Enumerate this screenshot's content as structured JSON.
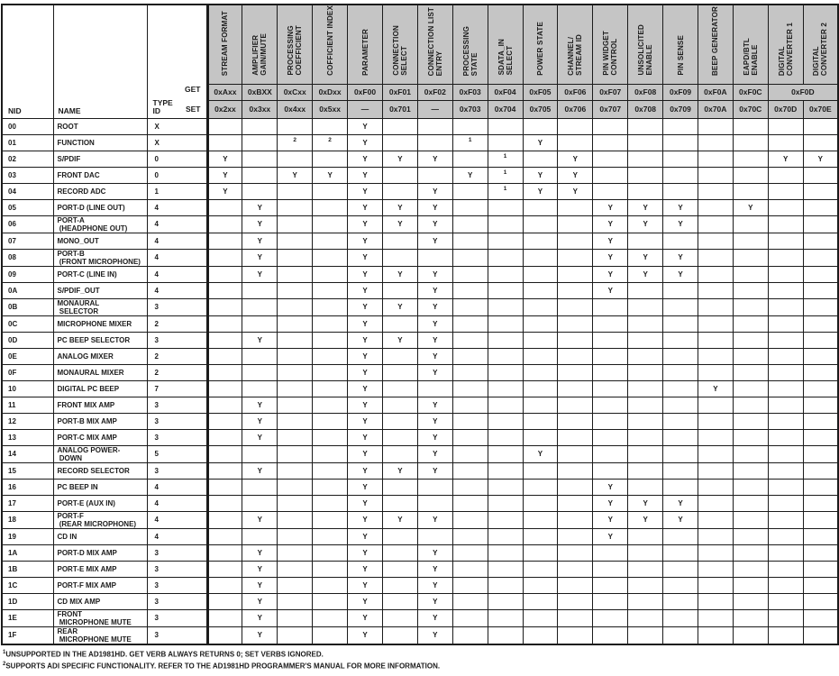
{
  "table": {
    "corner": {
      "nid": "NID",
      "name": "NAME",
      "type_id": "TYPE\nID",
      "get": "GET",
      "set": "SET"
    },
    "columns": [
      {
        "label": "STREAM FORMAT",
        "get": "0xAxx",
        "set": "0x2xx"
      },
      {
        "label": "AMPLIFIER\nGAIN/MUTE",
        "get": "0xBXX",
        "set": "0x3xx"
      },
      {
        "label": "PROCESSING\nCOEFFICIENT",
        "get": "0xCxx",
        "set": "0x4xx"
      },
      {
        "label": "COFFICIENT INDEX",
        "get": "0xDxx",
        "set": "0x5xx"
      },
      {
        "label": "PARAMETER",
        "get": "0xF00",
        "set": "—"
      },
      {
        "label": "CONNECTION\nSELECT",
        "get": "0xF01",
        "set": "0x701"
      },
      {
        "label": "CONNECTION LIST\nENTRY",
        "get": "0xF02",
        "set": "—"
      },
      {
        "label": "PROCESSING\nSTATE",
        "get": "0xF03",
        "set": "0x703"
      },
      {
        "label": "SDATA_IN\nSELECT",
        "get": "0xF04",
        "set": "0x704"
      },
      {
        "label": "POWER STATE",
        "get": "0xF05",
        "set": "0x705"
      },
      {
        "label": "CHANNEL/\nSTREAM ID",
        "get": "0xF06",
        "set": "0x706"
      },
      {
        "label": "PIN WIDGET\nCONTROL",
        "get": "0xF07",
        "set": "0x707"
      },
      {
        "label": "UNSOLICITED\nENABLE",
        "get": "0xF08",
        "set": "0x708"
      },
      {
        "label": "PIN SENSE",
        "get": "0xF09",
        "set": "0x709"
      },
      {
        "label": "BEEP GENERATOR",
        "get": "0xF0A",
        "set": "0x70A"
      },
      {
        "label": "EAPD/BTL\nENABLE",
        "get": "0xF0C",
        "set": "0x70C"
      },
      {
        "label": "DIGITAL\nCONVERTER 1",
        "get": "0xF0D",
        "get_colspan": 2,
        "set": "0x70D"
      },
      {
        "label": "DIGITAL\nCONVERTER 2",
        "get": null,
        "set": "0x70E"
      }
    ],
    "rows": [
      {
        "nid": "00",
        "name": "ROOT",
        "type": "X",
        "cells": [
          "",
          "",
          "",
          "",
          "Y",
          "",
          "",
          "",
          "",
          "",
          "",
          "",
          "",
          "",
          "",
          "",
          "",
          ""
        ]
      },
      {
        "nid": "01",
        "name": "FUNCTION",
        "type": "X",
        "cells": [
          "",
          "",
          "2",
          "2",
          "Y",
          "",
          "",
          "1",
          "",
          "Y",
          "",
          "",
          "",
          "",
          "",
          "",
          "",
          ""
        ]
      },
      {
        "nid": "02",
        "name": "S/PDIF",
        "type": "0",
        "cells": [
          "Y",
          "",
          "",
          "",
          "Y",
          "Y",
          "Y",
          "",
          "1",
          "",
          "Y",
          "",
          "",
          "",
          "",
          "",
          "Y",
          "Y"
        ]
      },
      {
        "nid": "03",
        "name": "FRONT DAC",
        "type": "0",
        "cells": [
          "Y",
          "",
          "Y",
          "Y",
          "Y",
          "",
          "",
          "Y",
          "1",
          "Y",
          "Y",
          "",
          "",
          "",
          "",
          "",
          "",
          ""
        ]
      },
      {
        "nid": "04",
        "name": "RECORD ADC",
        "type": "1",
        "cells": [
          "Y",
          "",
          "",
          "",
          "Y",
          "",
          "Y",
          "",
          "1",
          "Y",
          "Y",
          "",
          "",
          "",
          "",
          "",
          "",
          ""
        ]
      },
      {
        "nid": "05",
        "name": "PORT-D (LINE OUT)",
        "type": "4",
        "cells": [
          "",
          "Y",
          "",
          "",
          "Y",
          "Y",
          "Y",
          "",
          "",
          "",
          "",
          "Y",
          "Y",
          "Y",
          "",
          "Y",
          "",
          ""
        ]
      },
      {
        "nid": "06",
        "name": "PORT-A\n (HEADPHONE OUT)",
        "type": "4",
        "cells": [
          "",
          "Y",
          "",
          "",
          "Y",
          "Y",
          "Y",
          "",
          "",
          "",
          "",
          "Y",
          "Y",
          "Y",
          "",
          "",
          "",
          ""
        ]
      },
      {
        "nid": "07",
        "name": "MONO_OUT",
        "type": "4",
        "cells": [
          "",
          "Y",
          "",
          "",
          "Y",
          "",
          "Y",
          "",
          "",
          "",
          "",
          "Y",
          "",
          "",
          "",
          "",
          "",
          ""
        ]
      },
      {
        "nid": "08",
        "name": "PORT-B\n (FRONT MICROPHONE)",
        "type": "4",
        "cells": [
          "",
          "Y",
          "",
          "",
          "Y",
          "",
          "",
          "",
          "",
          "",
          "",
          "Y",
          "Y",
          "Y",
          "",
          "",
          "",
          ""
        ]
      },
      {
        "nid": "09",
        "name": "PORT-C (LINE IN)",
        "type": "4",
        "cells": [
          "",
          "Y",
          "",
          "",
          "Y",
          "Y",
          "Y",
          "",
          "",
          "",
          "",
          "Y",
          "Y",
          "Y",
          "",
          "",
          "",
          ""
        ]
      },
      {
        "nid": "0A",
        "name": "S/PDIF_OUT",
        "type": "4",
        "cells": [
          "",
          "",
          "",
          "",
          "Y",
          "",
          "Y",
          "",
          "",
          "",
          "",
          "Y",
          "",
          "",
          "",
          "",
          "",
          ""
        ]
      },
      {
        "nid": "0B",
        "name": "MONAURAL\n SELECTOR",
        "type": "3",
        "cells": [
          "",
          "",
          "",
          "",
          "Y",
          "Y",
          "Y",
          "",
          "",
          "",
          "",
          "",
          "",
          "",
          "",
          "",
          "",
          ""
        ]
      },
      {
        "nid": "0C",
        "name": "MICROPHONE MIXER",
        "type": "2",
        "cells": [
          "",
          "",
          "",
          "",
          "Y",
          "",
          "Y",
          "",
          "",
          "",
          "",
          "",
          "",
          "",
          "",
          "",
          "",
          ""
        ]
      },
      {
        "nid": "0D",
        "name": "PC BEEP SELECTOR",
        "type": "3",
        "cells": [
          "",
          "Y",
          "",
          "",
          "Y",
          "Y",
          "Y",
          "",
          "",
          "",
          "",
          "",
          "",
          "",
          "",
          "",
          "",
          ""
        ]
      },
      {
        "nid": "0E",
        "name": "ANALOG MIXER",
        "type": "2",
        "cells": [
          "",
          "",
          "",
          "",
          "Y",
          "",
          "Y",
          "",
          "",
          "",
          "",
          "",
          "",
          "",
          "",
          "",
          "",
          ""
        ]
      },
      {
        "nid": "0F",
        "name": "MONAURAL MIXER",
        "type": "2",
        "cells": [
          "",
          "",
          "",
          "",
          "Y",
          "",
          "Y",
          "",
          "",
          "",
          "",
          "",
          "",
          "",
          "",
          "",
          "",
          ""
        ]
      },
      {
        "nid": "10",
        "name": "DIGITAL PC BEEP",
        "type": "7",
        "cells": [
          "",
          "",
          "",
          "",
          "Y",
          "",
          "",
          "",
          "",
          "",
          "",
          "",
          "",
          "",
          "Y",
          "",
          "",
          ""
        ]
      },
      {
        "nid": "11",
        "name": "FRONT MIX AMP",
        "type": "3",
        "cells": [
          "",
          "Y",
          "",
          "",
          "Y",
          "",
          "Y",
          "",
          "",
          "",
          "",
          "",
          "",
          "",
          "",
          "",
          "",
          ""
        ]
      },
      {
        "nid": "12",
        "name": "PORT-B MIX AMP",
        "type": "3",
        "cells": [
          "",
          "Y",
          "",
          "",
          "Y",
          "",
          "Y",
          "",
          "",
          "",
          "",
          "",
          "",
          "",
          "",
          "",
          "",
          ""
        ]
      },
      {
        "nid": "13",
        "name": "PORT-C MIX AMP",
        "type": "3",
        "cells": [
          "",
          "Y",
          "",
          "",
          "Y",
          "",
          "Y",
          "",
          "",
          "",
          "",
          "",
          "",
          "",
          "",
          "",
          "",
          ""
        ]
      },
      {
        "nid": "14",
        "name": "ANALOG POWER-\n DOWN",
        "type": "5",
        "cells": [
          "",
          "",
          "",
          "",
          "Y",
          "",
          "Y",
          "",
          "",
          "Y",
          "",
          "",
          "",
          "",
          "",
          "",
          "",
          ""
        ]
      },
      {
        "nid": "15",
        "name": "RECORD SELECTOR",
        "type": "3",
        "cells": [
          "",
          "Y",
          "",
          "",
          "Y",
          "Y",
          "Y",
          "",
          "",
          "",
          "",
          "",
          "",
          "",
          "",
          "",
          "",
          ""
        ]
      },
      {
        "nid": "16",
        "name": "PC BEEP IN",
        "type": "4",
        "cells": [
          "",
          "",
          "",
          "",
          "Y",
          "",
          "",
          "",
          "",
          "",
          "",
          "Y",
          "",
          "",
          "",
          "",
          "",
          ""
        ]
      },
      {
        "nid": "17",
        "name": "PORT-E (AUX IN)",
        "type": "4",
        "cells": [
          "",
          "",
          "",
          "",
          "Y",
          "",
          "",
          "",
          "",
          "",
          "",
          "Y",
          "Y",
          "Y",
          "",
          "",
          "",
          ""
        ]
      },
      {
        "nid": "18",
        "name": "PORT-F\n (REAR MICROPHONE)",
        "type": "4",
        "cells": [
          "",
          "Y",
          "",
          "",
          "Y",
          "Y",
          "Y",
          "",
          "",
          "",
          "",
          "Y",
          "Y",
          "Y",
          "",
          "",
          "",
          ""
        ]
      },
      {
        "nid": "19",
        "name": "CD IN",
        "type": "4",
        "cells": [
          "",
          "",
          "",
          "",
          "Y",
          "",
          "",
          "",
          "",
          "",
          "",
          "Y",
          "",
          "",
          "",
          "",
          "",
          ""
        ]
      },
      {
        "nid": "1A",
        "name": "PORT-D MIX AMP",
        "type": "3",
        "cells": [
          "",
          "Y",
          "",
          "",
          "Y",
          "",
          "Y",
          "",
          "",
          "",
          "",
          "",
          "",
          "",
          "",
          "",
          "",
          ""
        ]
      },
      {
        "nid": "1B",
        "name": "PORT-E MIX AMP",
        "type": "3",
        "cells": [
          "",
          "Y",
          "",
          "",
          "Y",
          "",
          "Y",
          "",
          "",
          "",
          "",
          "",
          "",
          "",
          "",
          "",
          "",
          ""
        ]
      },
      {
        "nid": "1C",
        "name": "PORT-F MIX AMP",
        "type": "3",
        "cells": [
          "",
          "Y",
          "",
          "",
          "Y",
          "",
          "Y",
          "",
          "",
          "",
          "",
          "",
          "",
          "",
          "",
          "",
          "",
          ""
        ]
      },
      {
        "nid": "1D",
        "name": "CD MIX AMP",
        "type": "3",
        "cells": [
          "",
          "Y",
          "",
          "",
          "Y",
          "",
          "Y",
          "",
          "",
          "",
          "",
          "",
          "",
          "",
          "",
          "",
          "",
          ""
        ]
      },
      {
        "nid": "1E",
        "name": "FRONT\n MICROPHONE MUTE",
        "type": "3",
        "cells": [
          "",
          "Y",
          "",
          "",
          "Y",
          "",
          "Y",
          "",
          "",
          "",
          "",
          "",
          "",
          "",
          "",
          "",
          "",
          ""
        ]
      },
      {
        "nid": "1F",
        "name": "REAR\n MICROPHONE MUTE",
        "type": "3",
        "cells": [
          "",
          "Y",
          "",
          "",
          "Y",
          "",
          "Y",
          "",
          "",
          "",
          "",
          "",
          "",
          "",
          "",
          "",
          "",
          ""
        ]
      }
    ]
  },
  "footnotes": [
    {
      "sup": "1",
      "text": "UNSUPPORTED IN THE AD1981HD. GET VERB ALWAYS RETURNS 0; SET VERBS IGNORED."
    },
    {
      "sup": "2",
      "text": "SUPPORTS ADI SPECIFIC FUNCTIONALITY. REFER TO THE AD1981HD PROGRAMMER'S MANUAL FOR MORE INFORMATION."
    }
  ],
  "colors": {
    "header_bg": "#c5c5c5",
    "border": "#1b1b1b",
    "text": "#1b1b1b",
    "page_bg": "#ffffff"
  }
}
